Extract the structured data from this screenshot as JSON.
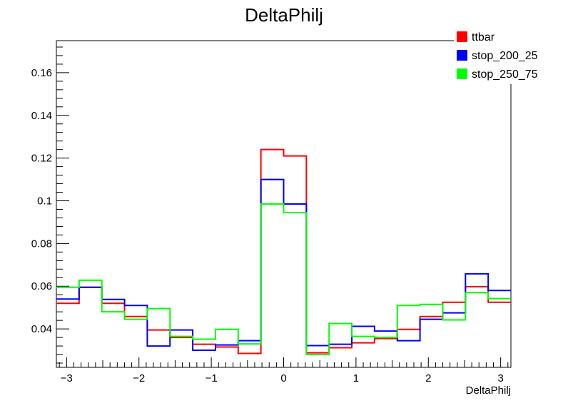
{
  "chart_data": {
    "type": "histogram",
    "title": "DeltaPhilj",
    "xlabel": "DeltaPhilj",
    "ylabel": "",
    "xlim": [
      -3.1416,
      3.1416
    ],
    "ylim": [
      0.022,
      0.175
    ],
    "xticks": [
      -3,
      -2,
      -1,
      0,
      1,
      2,
      3
    ],
    "xtick_labels": [
      "−3",
      "−2",
      "−1",
      "0",
      "1",
      "2",
      "3"
    ],
    "yticks": [
      0.04,
      0.06,
      0.08,
      0.1,
      0.12,
      0.14,
      0.16
    ],
    "ytick_labels": [
      "0.04",
      "0.06",
      "0.08",
      "0.1",
      "0.12",
      "0.14",
      "0.16"
    ],
    "bins": 20,
    "legend_position": "top-right",
    "series": [
      {
        "name": "ttbar",
        "color": "#ff0000",
        "values": [
          0.052,
          0.0595,
          0.052,
          0.0458,
          0.0395,
          0.036,
          0.0328,
          0.0315,
          0.0285,
          0.124,
          0.121,
          0.0288,
          0.0312,
          0.0335,
          0.0355,
          0.0398,
          0.0458,
          0.0525,
          0.0598,
          0.0525
        ]
      },
      {
        "name": "stop_200_25",
        "color": "#0000ff",
        "values": [
          0.054,
          0.0595,
          0.0538,
          0.051,
          0.032,
          0.0395,
          0.03,
          0.0325,
          0.0345,
          0.11,
          0.0985,
          0.0322,
          0.0328,
          0.0412,
          0.039,
          0.0345,
          0.0445,
          0.0475,
          0.0658,
          0.058
        ]
      },
      {
        "name": "stop_250_75",
        "color": "#00ff00",
        "values": [
          0.0595,
          0.0628,
          0.048,
          0.0445,
          0.0495,
          0.0365,
          0.0352,
          0.0398,
          0.033,
          0.0985,
          0.0945,
          0.028,
          0.0425,
          0.0365,
          0.036,
          0.051,
          0.0515,
          0.0442,
          0.057,
          0.0542
        ]
      }
    ]
  }
}
